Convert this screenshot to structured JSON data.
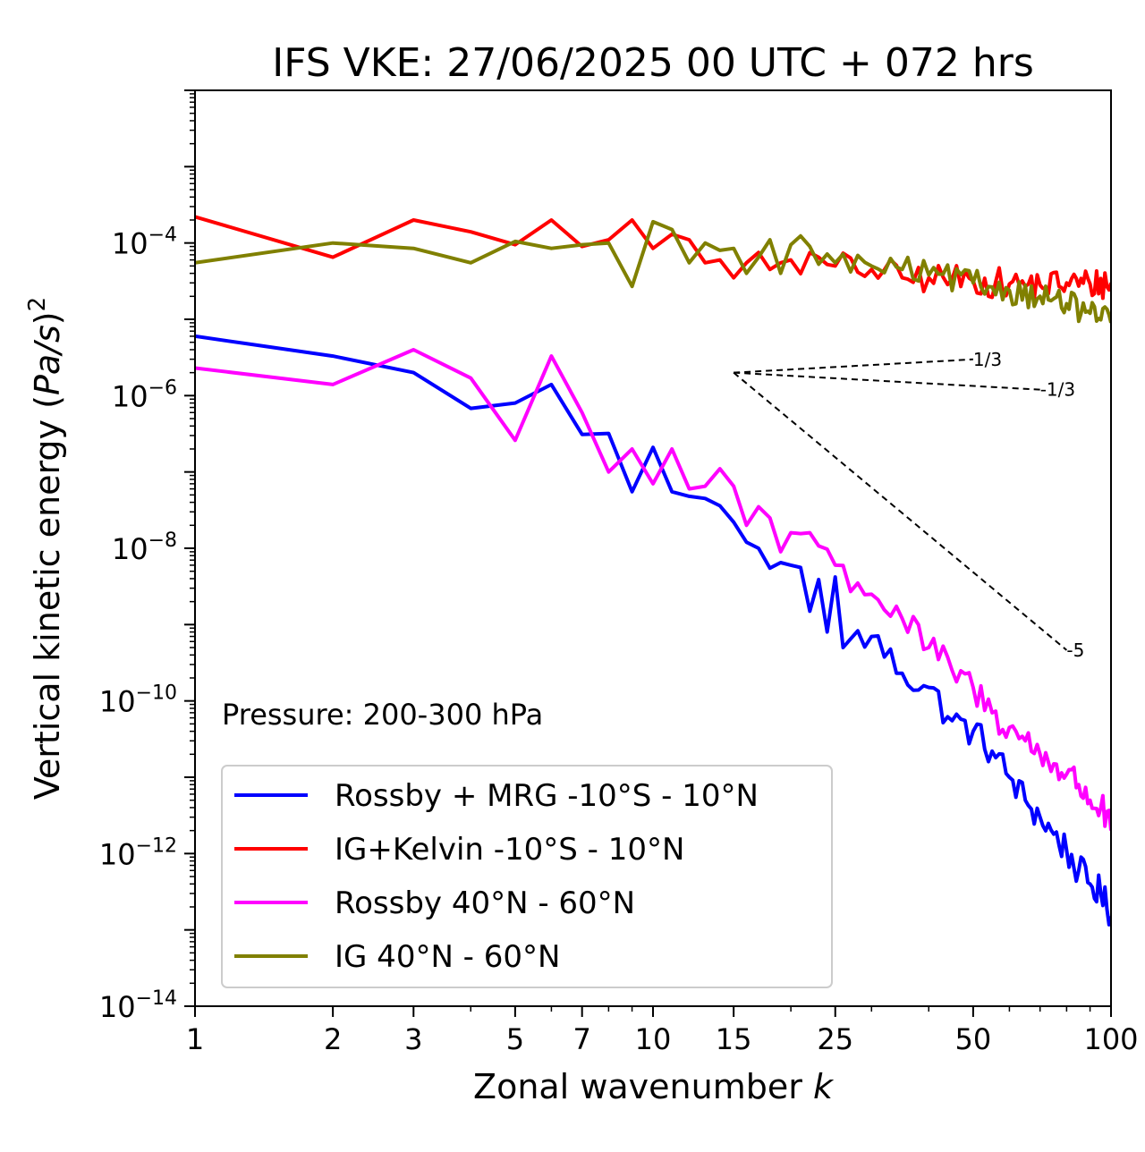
{
  "chart_data": {
    "type": "line",
    "title": "IFS VKE: 27/06/2025 00 UTC + 072 hrs",
    "xlabel": "Zonal wavenumber k",
    "xlabel_main": "Zonal wavenumber ",
    "xlabel_var": "k",
    "ylabel": "Vertical kinetic energy (Pa/s)²",
    "ylabel_main": "Vertical kinetic energy (",
    "ylabel_var": "Pa/s",
    "ylabel_close": ")",
    "ylabel_exp": "2",
    "xscale": "log",
    "yscale": "log",
    "xlim": [
      1,
      100
    ],
    "ylim": [
      1e-14,
      0.01
    ],
    "x_ticks": [
      1,
      2,
      3,
      5,
      7,
      10,
      15,
      25,
      50,
      100
    ],
    "x_tick_labels": [
      "1",
      "2",
      "3",
      "5",
      "7",
      "10",
      "15",
      "25",
      "50",
      "100"
    ],
    "y_ticks": [
      {
        "value": 0.0001,
        "base": "10",
        "exp": "−4"
      },
      {
        "value": 1e-06,
        "base": "10",
        "exp": "−6"
      },
      {
        "value": 1e-08,
        "base": "10",
        "exp": "−8"
      },
      {
        "value": 1e-10,
        "base": "10",
        "exp": "−10"
      },
      {
        "value": 1e-12,
        "base": "10",
        "exp": "−12"
      },
      {
        "value": 1e-14,
        "base": "10",
        "exp": "−14"
      }
    ],
    "annotation": "Pressure: 200-300 hPa",
    "grid": false,
    "legend_position": "lower-left",
    "series": [
      {
        "name": "Rossby + MRG -10°S - 10°N",
        "color": "#0000ff",
        "anchors": [
          [
            1,
            6e-06
          ],
          [
            2,
            3.3e-06
          ],
          [
            3,
            2e-06
          ],
          [
            4,
            6.8e-07
          ],
          [
            5,
            8e-07
          ],
          [
            6,
            1.4e-06
          ],
          [
            7,
            3.1e-07
          ],
          [
            8,
            3.2e-07
          ],
          [
            9,
            5.5e-08
          ],
          [
            10,
            2.1e-07
          ],
          [
            11,
            5.5e-08
          ],
          [
            12,
            4.8e-08
          ],
          [
            13,
            4.5e-08
          ],
          [
            14,
            3.6e-08
          ],
          [
            15,
            2.2e-08
          ],
          [
            16,
            1.2e-08
          ],
          [
            17,
            1e-08
          ],
          [
            18,
            5.5e-09
          ],
          [
            19,
            6.5e-09
          ],
          [
            20,
            6e-09
          ],
          [
            21,
            5.6e-09
          ],
          [
            22,
            1.5e-09
          ],
          [
            23,
            3.9e-09
          ],
          [
            24,
            8e-10
          ],
          [
            25,
            4.2e-09
          ],
          [
            26,
            5e-10
          ],
          [
            27,
            6.5e-10
          ],
          [
            30,
            7e-10
          ],
          [
            35,
            2.3e-10
          ],
          [
            40,
            1.5e-10
          ],
          [
            45,
            5.5e-11
          ],
          [
            50,
            4e-11
          ],
          [
            55,
            2.2e-11
          ],
          [
            60,
            1e-11
          ],
          [
            65,
            5e-12
          ],
          [
            70,
            3e-12
          ],
          [
            75,
            1.8e-12
          ],
          [
            80,
            1.1e-12
          ],
          [
            85,
            6e-13
          ],
          [
            90,
            4e-13
          ],
          [
            95,
            3e-13
          ],
          [
            100,
            1.5e-13
          ]
        ],
        "noise": 0.22
      },
      {
        "name": "IG+Kelvin -10°S - 10°N",
        "color": "#ff0000",
        "anchors": [
          [
            1,
            0.00022
          ],
          [
            2,
            6.5e-05
          ],
          [
            3,
            0.0002
          ],
          [
            4,
            0.00014
          ],
          [
            5,
            9.5e-05
          ],
          [
            6,
            0.0002
          ],
          [
            7,
            9e-05
          ],
          [
            8,
            0.00011
          ],
          [
            9,
            0.0002
          ],
          [
            10,
            8.5e-05
          ],
          [
            11,
            0.00013
          ],
          [
            12,
            0.00011
          ],
          [
            13,
            5.5e-05
          ],
          [
            14,
            6e-05
          ],
          [
            15,
            3.5e-05
          ],
          [
            16,
            5.5e-05
          ],
          [
            17,
            7.5e-05
          ],
          [
            18,
            4.5e-05
          ],
          [
            19,
            5.5e-05
          ],
          [
            20,
            6e-05
          ],
          [
            25,
            5e-05
          ],
          [
            30,
            4.5e-05
          ],
          [
            35,
            3.5e-05
          ],
          [
            40,
            3.5e-05
          ],
          [
            50,
            3.2e-05
          ],
          [
            60,
            2.9e-05
          ],
          [
            70,
            2.8e-05
          ],
          [
            80,
            3e-05
          ],
          [
            90,
            2.9e-05
          ],
          [
            100,
            3e-05
          ]
        ],
        "noise": 0.2
      },
      {
        "name": "Rossby 40°N - 60°N",
        "color": "#ff00ff",
        "anchors": [
          [
            1,
            2.3e-06
          ],
          [
            2,
            1.4e-06
          ],
          [
            3,
            4e-06
          ],
          [
            4,
            1.7e-06
          ],
          [
            5,
            2.6e-07
          ],
          [
            6,
            3.3e-06
          ],
          [
            7,
            6e-07
          ],
          [
            8,
            1e-07
          ],
          [
            9,
            2e-07
          ],
          [
            10,
            7e-08
          ],
          [
            11,
            2e-07
          ],
          [
            12,
            6e-08
          ],
          [
            13,
            6.5e-08
          ],
          [
            14,
            1.1e-07
          ],
          [
            15,
            6.5e-08
          ],
          [
            16,
            2e-08
          ],
          [
            17,
            3.5e-08
          ],
          [
            18,
            2.5e-08
          ],
          [
            19,
            9e-09
          ],
          [
            20,
            1.6e-08
          ],
          [
            22,
            1.6e-08
          ],
          [
            25,
            6e-09
          ],
          [
            28,
            3.5e-09
          ],
          [
            30,
            2.5e-09
          ],
          [
            35,
            1.2e-09
          ],
          [
            40,
            5e-10
          ],
          [
            45,
            2.5e-10
          ],
          [
            50,
            1.5e-10
          ],
          [
            55,
            7e-11
          ],
          [
            60,
            4.5e-11
          ],
          [
            65,
            3e-11
          ],
          [
            70,
            2e-11
          ],
          [
            75,
            1.5e-11
          ],
          [
            80,
            1.1e-11
          ],
          [
            85,
            8e-12
          ],
          [
            90,
            5e-12
          ],
          [
            95,
            4e-12
          ],
          [
            100,
            2e-12
          ]
        ],
        "noise": 0.22
      },
      {
        "name": "IG 40°N - 60°N",
        "color": "#808000",
        "anchors": [
          [
            1,
            5.5e-05
          ],
          [
            2,
            0.0001
          ],
          [
            3,
            8.5e-05
          ],
          [
            4,
            5.5e-05
          ],
          [
            5,
            0.000105
          ],
          [
            6,
            8.5e-05
          ],
          [
            7,
            9.5e-05
          ],
          [
            8,
            0.0001
          ],
          [
            9,
            2.7e-05
          ],
          [
            10,
            0.00019
          ],
          [
            11,
            0.00015
          ],
          [
            12,
            5.5e-05
          ],
          [
            13,
            0.0001
          ],
          [
            14,
            8e-05
          ],
          [
            15,
            8.5e-05
          ],
          [
            16,
            4e-05
          ],
          [
            17,
            6.5e-05
          ],
          [
            18,
            0.00011
          ],
          [
            19,
            4e-05
          ],
          [
            20,
            9.5e-05
          ],
          [
            22,
            9e-05
          ],
          [
            25,
            5.5e-05
          ],
          [
            30,
            5e-05
          ],
          [
            35,
            4.5e-05
          ],
          [
            40,
            3.8e-05
          ],
          [
            50,
            3e-05
          ],
          [
            60,
            2.4e-05
          ],
          [
            70,
            2e-05
          ],
          [
            80,
            1.6e-05
          ],
          [
            90,
            1.2e-05
          ],
          [
            100,
            9e-06
          ]
        ],
        "noise": 0.18
      }
    ],
    "reference_slopes": [
      {
        "label": "1/3",
        "slope": 0.3333,
        "x0": 15,
        "y0": 2e-06,
        "x1": 50
      },
      {
        "label": "-1/3",
        "slope": -0.3333,
        "x0": 15,
        "y0": 2e-06,
        "x1": 70
      },
      {
        "label": "-5",
        "slope": -5,
        "x0": 15,
        "y0": 2e-06,
        "x1": 80
      }
    ]
  }
}
